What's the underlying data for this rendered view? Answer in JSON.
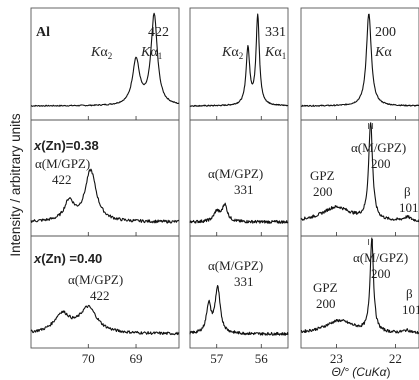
{
  "chart_data": {
    "type": "line",
    "ylabel": "Intensity / arbitrary units",
    "xlabel_prefix": "Θ/° (Cu",
    "xlabel_k": "K",
    "xlabel_alpha": "α",
    "xlabel_suffix": ")",
    "rows": [
      {
        "name": "Al",
        "label": "Al"
      },
      {
        "name": "x(Zn)=0.38",
        "label_prefix": "x",
        "label_rest": "(Zn)=0.38"
      },
      {
        "name": "x(Zn)=0.40",
        "label_prefix": "x",
        "label_rest": "(Zn) =0.40"
      }
    ],
    "columns": [
      {
        "name": "422",
        "xlim": [
          71.2,
          68.1
        ],
        "ticks": [
          70,
          69
        ]
      },
      {
        "name": "331",
        "xlim": [
          57.6,
          55.4
        ],
        "ticks": [
          57,
          56
        ]
      },
      {
        "name": "200",
        "xlim": [
          23.6,
          21.6
        ],
        "ticks": [
          23,
          22
        ]
      }
    ],
    "annotations": {
      "k_alpha2": {
        "K": "K",
        "alpha": "α",
        "sub": "2"
      },
      "k_alpha1": {
        "K": "K",
        "alpha": "α",
        "sub": "1"
      },
      "k_alpha": {
        "K": "K",
        "alpha": "α"
      },
      "r0c0_hkl": "422",
      "r0c1_hkl": "331",
      "r0c2_hkl": "200",
      "alpha_phase": "α(M/GPZ)",
      "r1c0_hkl": "422",
      "r1c1_hkl": "331",
      "r1c2_hkl": "200",
      "r2c0_hkl": "422",
      "r2c1_hkl": "331",
      "r2c2_hkl": "200",
      "gpz": "GPZ",
      "gpz_hkl": "200",
      "beta": "β",
      "beta_hkl": "101"
    },
    "peaks": [
      [
        [
          {
            "x": 69.0,
            "h": 0.48,
            "w": 0.09
          },
          {
            "x": 68.62,
            "h": 0.96,
            "w": 0.08
          }
        ],
        [
          {
            "x": 56.3,
            "h": 0.6,
            "w": 0.05
          },
          {
            "x": 56.08,
            "h": 0.95,
            "w": 0.045
          }
        ],
        [
          {
            "x": 22.45,
            "h": 0.98,
            "w": 0.05
          }
        ]
      ],
      [
        [
          {
            "x": 70.4,
            "h": 0.2,
            "w": 0.12
          },
          {
            "x": 69.95,
            "h": 0.52,
            "w": 0.14
          }
        ],
        [
          {
            "x": 57.0,
            "h": 0.1,
            "w": 0.08
          },
          {
            "x": 56.82,
            "h": 0.17,
            "w": 0.07
          }
        ],
        [
          {
            "x": 23.0,
            "h": 0.15,
            "w": 0.3
          },
          {
            "x": 22.42,
            "h": 0.99,
            "w": 0.04
          },
          {
            "x": 21.8,
            "h": 0.04,
            "w": 0.08
          }
        ]
      ],
      [
        [
          {
            "x": 70.55,
            "h": 0.2,
            "w": 0.2
          },
          {
            "x": 70.0,
            "h": 0.27,
            "w": 0.22
          }
        ],
        [
          {
            "x": 57.18,
            "h": 0.3,
            "w": 0.06
          },
          {
            "x": 56.98,
            "h": 0.48,
            "w": 0.07
          }
        ],
        [
          {
            "x": 22.95,
            "h": 0.14,
            "w": 0.3
          },
          {
            "x": 22.4,
            "h": 0.99,
            "w": 0.035
          },
          {
            "x": 21.8,
            "h": 0.03,
            "w": 0.08
          }
        ]
      ]
    ]
  }
}
